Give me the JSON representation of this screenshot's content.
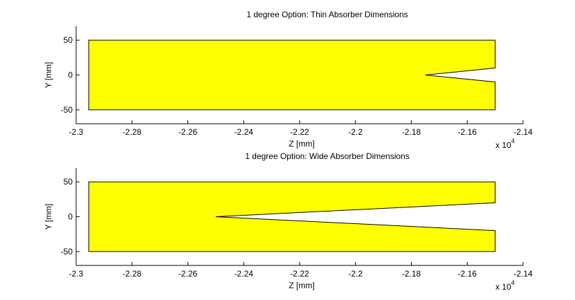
{
  "chart_data": [
    {
      "type": "area",
      "title": "1 degree Option: Thin Absorber Dimensions",
      "xlabel": "Z [mm]",
      "ylabel": "Y [mm]",
      "x_multiplier_label": "x 10",
      "x_multiplier_exponent": "4",
      "xlim": [
        -2.3,
        -2.14
      ],
      "ylim": [
        -70,
        70
      ],
      "xticks": [
        -2.3,
        -2.28,
        -2.26,
        -2.24,
        -2.22,
        -2.2,
        -2.18,
        -2.16,
        -2.14
      ],
      "xtick_labels": [
        "-2.3",
        "-2.28",
        "-2.26",
        "-2.24",
        "-2.22",
        "-2.2",
        "-2.18",
        "-2.16",
        "-2.14"
      ],
      "yticks": [
        -50,
        0,
        50
      ],
      "ytick_labels": [
        "-50",
        "0",
        "50"
      ],
      "grid": false,
      "fill_color": "#ffff00",
      "edge_color": "#000000",
      "polygon": {
        "x": [
          -2.2955,
          -2.15,
          -2.15,
          -2.175,
          -2.15,
          -2.15,
          -2.2955
        ],
        "y": [
          50,
          50,
          10,
          0,
          -10,
          -50,
          -50
        ]
      }
    },
    {
      "type": "area",
      "title": "1 degree Option: Wide Absorber Dimensions",
      "xlabel": "Z [mm]",
      "ylabel": "Y [mm]",
      "x_multiplier_label": "x 10",
      "x_multiplier_exponent": "4",
      "xlim": [
        -2.3,
        -2.14
      ],
      "ylim": [
        -70,
        70
      ],
      "xticks": [
        -2.3,
        -2.28,
        -2.26,
        -2.24,
        -2.22,
        -2.2,
        -2.18,
        -2.16,
        -2.14
      ],
      "xtick_labels": [
        "-2.3",
        "-2.28",
        "-2.26",
        "-2.24",
        "-2.22",
        "-2.2",
        "-2.18",
        "-2.16",
        "-2.14"
      ],
      "yticks": [
        -50,
        0,
        50
      ],
      "ytick_labels": [
        "-50",
        "0",
        "50"
      ],
      "grid": false,
      "fill_color": "#ffff00",
      "edge_color": "#000000",
      "polygon": {
        "x": [
          -2.2955,
          -2.15,
          -2.15,
          -2.25,
          -2.15,
          -2.15,
          -2.2955
        ],
        "y": [
          50,
          50,
          20,
          0,
          -20,
          -50,
          -50
        ]
      }
    }
  ]
}
